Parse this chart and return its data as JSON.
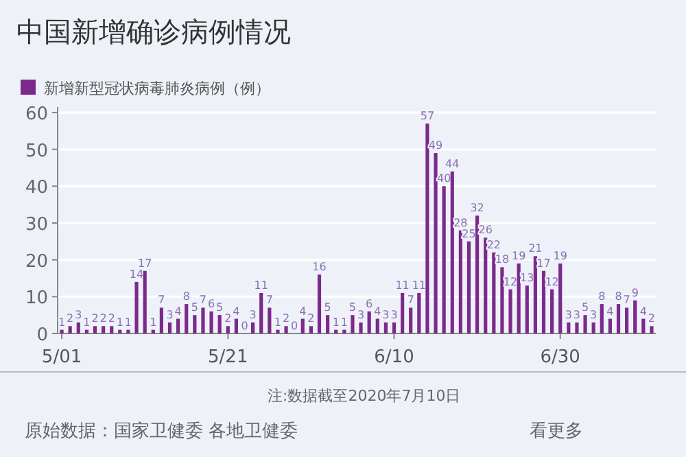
{
  "chart_data": {
    "type": "bar",
    "title": "中国新增确诊病例情况",
    "categories": [
      "5/01",
      null,
      null,
      null,
      null,
      null,
      null,
      null,
      null,
      null,
      null,
      null,
      null,
      null,
      null,
      null,
      null,
      null,
      null,
      null,
      "5/21",
      null,
      null,
      null,
      null,
      null,
      null,
      null,
      null,
      null,
      null,
      null,
      null,
      null,
      null,
      null,
      null,
      null,
      null,
      null,
      "6/10",
      null,
      null,
      null,
      null,
      null,
      null,
      null,
      null,
      null,
      null,
      null,
      null,
      null,
      null,
      null,
      null,
      null,
      null,
      null,
      "6/30",
      null,
      null,
      null,
      null,
      null,
      null,
      null,
      null,
      null,
      null,
      null
    ],
    "series": [
      {
        "name": "新增新型冠状病毒肺炎病例（例）",
        "color": "#7b2a8c",
        "values": [
          1,
          2,
          3,
          1,
          2,
          2,
          2,
          1,
          1,
          14,
          17,
          1,
          7,
          3,
          4,
          8,
          5,
          7,
          6,
          5,
          2,
          4,
          0,
          3,
          11,
          7,
          1,
          2,
          0,
          4,
          2,
          16,
          5,
          1,
          1,
          5,
          3,
          6,
          4,
          3,
          3,
          11,
          7,
          11,
          57,
          49,
          40,
          44,
          28,
          25,
          32,
          26,
          22,
          18,
          12,
          19,
          13,
          21,
          17,
          12,
          19,
          3,
          3,
          5,
          3,
          8,
          4,
          8,
          7,
          9,
          4,
          2
        ]
      }
    ],
    "ylim": [
      0,
      60
    ],
    "yticks": [
      0,
      10,
      20,
      30,
      40,
      50,
      60
    ],
    "grid": "y",
    "legend": "top left",
    "data_labels": true,
    "annotations": [
      "注:数据截至2020年7月10日",
      "原始数据：国家卫健委 各地卫健委",
      "看更多"
    ]
  }
}
